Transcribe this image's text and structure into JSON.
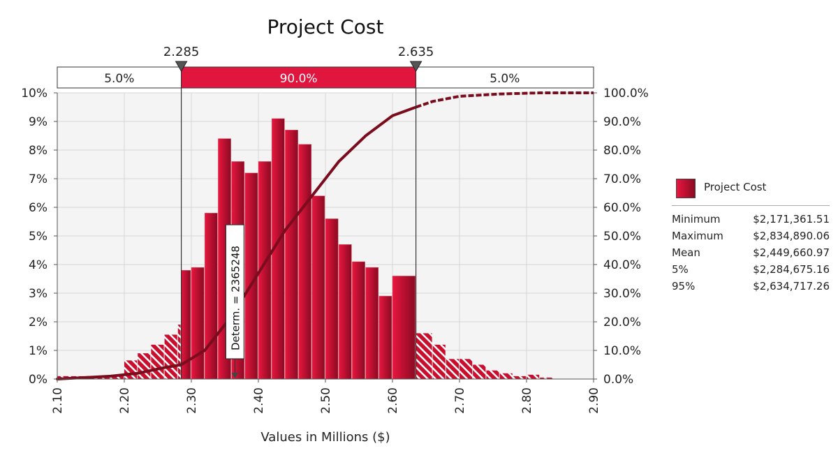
{
  "chart_data": {
    "type": "bar",
    "title": "Project Cost",
    "xlabel": "Values in Millions ($)",
    "x_range": [
      2.1,
      2.9
    ],
    "x_ticks": [
      "2.10",
      "2.20",
      "2.30",
      "2.40",
      "2.50",
      "2.60",
      "2.70",
      "2.80",
      "2.90"
    ],
    "y_left_range": [
      0,
      10
    ],
    "y_left_ticks": [
      "0%",
      "1%",
      "2%",
      "3%",
      "4%",
      "5%",
      "6%",
      "7%",
      "8%",
      "9%",
      "10%"
    ],
    "y_right_range": [
      0,
      100
    ],
    "y_right_ticks": [
      "0.0%",
      "10.0%",
      "20.0%",
      "30.0%",
      "40.0%",
      "50.0%",
      "60.0%",
      "70.0%",
      "80.0%",
      "90.0%",
      "100.0%"
    ],
    "grid": true,
    "bin_width": 0.02,
    "bins": [
      {
        "x": 2.1,
        "value": 0.1
      },
      {
        "x": 2.12,
        "value": 0.1
      },
      {
        "x": 2.14,
        "value": 0.1
      },
      {
        "x": 2.16,
        "value": 0.1
      },
      {
        "x": 2.18,
        "value": 0.15
      },
      {
        "x": 2.2,
        "value": 0.65
      },
      {
        "x": 2.22,
        "value": 0.9
      },
      {
        "x": 2.24,
        "value": 1.2
      },
      {
        "x": 2.26,
        "value": 1.55
      },
      {
        "x": 2.28,
        "value": 1.9
      },
      {
        "x": 2.285,
        "value": 3.8
      },
      {
        "x": 2.3,
        "value": 3.9
      },
      {
        "x": 2.32,
        "value": 5.8
      },
      {
        "x": 2.34,
        "value": 8.4
      },
      {
        "x": 2.36,
        "value": 7.6
      },
      {
        "x": 2.38,
        "value": 7.2
      },
      {
        "x": 2.4,
        "value": 7.6
      },
      {
        "x": 2.42,
        "value": 9.1
      },
      {
        "x": 2.44,
        "value": 8.7
      },
      {
        "x": 2.46,
        "value": 8.2
      },
      {
        "x": 2.48,
        "value": 6.4
      },
      {
        "x": 2.5,
        "value": 5.6
      },
      {
        "x": 2.52,
        "value": 4.7
      },
      {
        "x": 2.54,
        "value": 4.1
      },
      {
        "x": 2.56,
        "value": 3.9
      },
      {
        "x": 2.58,
        "value": 2.9
      },
      {
        "x": 2.6,
        "value": 3.6
      },
      {
        "x": 2.635,
        "value": 1.6
      },
      {
        "x": 2.66,
        "value": 1.2
      },
      {
        "x": 2.68,
        "value": 0.7
      },
      {
        "x": 2.7,
        "value": 0.7
      },
      {
        "x": 2.72,
        "value": 0.5
      },
      {
        "x": 2.74,
        "value": 0.3
      },
      {
        "x": 2.76,
        "value": 0.2
      },
      {
        "x": 2.78,
        "value": 0.1
      },
      {
        "x": 2.8,
        "value": 0.15
      },
      {
        "x": 2.82,
        "value": 0.05
      }
    ],
    "cumulative": [
      {
        "x": 2.1,
        "y": 0.0
      },
      {
        "x": 2.18,
        "y": 1.0
      },
      {
        "x": 2.22,
        "y": 2.0
      },
      {
        "x": 2.26,
        "y": 4.0
      },
      {
        "x": 2.285,
        "y": 5.0
      },
      {
        "x": 2.32,
        "y": 10.0
      },
      {
        "x": 2.36,
        "y": 22.0
      },
      {
        "x": 2.4,
        "y": 37.0
      },
      {
        "x": 2.44,
        "y": 52.0
      },
      {
        "x": 2.48,
        "y": 64.0
      },
      {
        "x": 2.52,
        "y": 76.0
      },
      {
        "x": 2.56,
        "y": 85.0
      },
      {
        "x": 2.6,
        "y": 92.0
      },
      {
        "x": 2.635,
        "y": 95.0
      },
      {
        "x": 2.66,
        "y": 97.0
      },
      {
        "x": 2.7,
        "y": 98.8
      },
      {
        "x": 2.76,
        "y": 99.6
      },
      {
        "x": 2.82,
        "y": 100.0
      },
      {
        "x": 2.9,
        "y": 100.0
      }
    ],
    "delimiters": [
      {
        "x": 2.285,
        "label": "2.285"
      },
      {
        "x": 2.635,
        "label": "2.635"
      }
    ],
    "band": [
      {
        "label": "5.0%",
        "highlight": false
      },
      {
        "label": "90.0%",
        "highlight": true
      },
      {
        "label": "5.0%",
        "highlight": false
      }
    ],
    "marker": {
      "x": 2.365,
      "label": "Determ. = 2365248"
    },
    "colors": {
      "bar": "#c8102e",
      "bar_dark": "#8a0a22",
      "curve": "#7a0c1e",
      "band": "#e0163f"
    }
  },
  "legend": {
    "label": "Project Cost"
  },
  "stats": [
    {
      "name": "Minimum",
      "value": "$2,171,361.51"
    },
    {
      "name": "Maximum",
      "value": "$2,834,890.06"
    },
    {
      "name": "Mean",
      "value": "$2,449,660.97"
    },
    {
      "name": "5%",
      "value": "$2,284,675.16"
    },
    {
      "name": "95%",
      "value": "$2,634,717.26"
    }
  ]
}
